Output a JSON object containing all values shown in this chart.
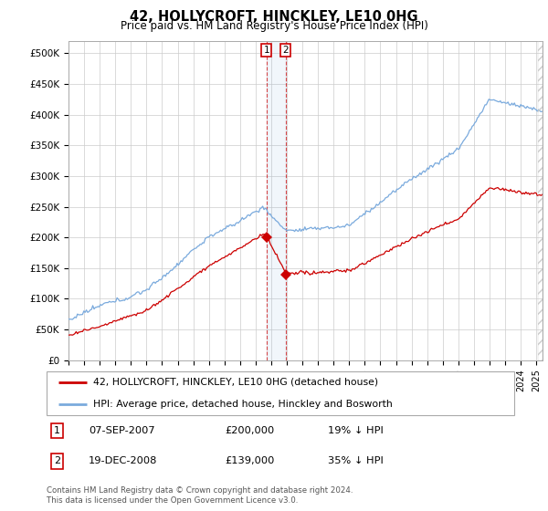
{
  "title": "42, HOLLYCROFT, HINCKLEY, LE10 0HG",
  "subtitle": "Price paid vs. HM Land Registry's House Price Index (HPI)",
  "background_color": "#ffffff",
  "grid_color": "#cccccc",
  "hpi_color": "#7aaadd",
  "price_color": "#cc0000",
  "sale1_date": "07-SEP-2007",
  "sale1_price": 200000,
  "sale1_hpi_pct": 19,
  "sale2_date": "19-DEC-2008",
  "sale2_price": 139000,
  "sale2_hpi_pct": 35,
  "legend_label1": "42, HOLLYCROFT, HINCKLEY, LE10 0HG (detached house)",
  "legend_label2": "HPI: Average price, detached house, Hinckley and Bosworth",
  "footer": "Contains HM Land Registry data © Crown copyright and database right 2024.\nThis data is licensed under the Open Government Licence v3.0.",
  "ylim_max": 520000,
  "yticks": [
    0,
    50000,
    100000,
    150000,
    200000,
    250000,
    300000,
    350000,
    400000,
    450000,
    500000
  ],
  "sale1_x_year": 2007.69,
  "sale2_x_year": 2008.97,
  "xmin": 1995.0,
  "xmax": 2025.4
}
